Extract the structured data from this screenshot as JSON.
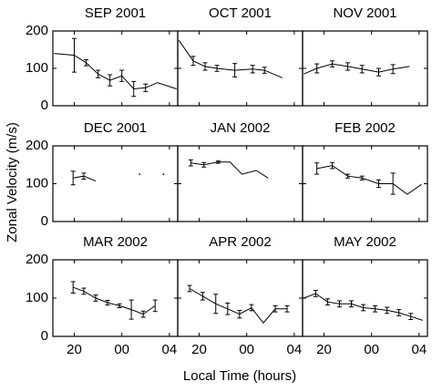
{
  "ylabel": "Zonal Velocity (m/s)",
  "xlabel": "Local Time (hours)",
  "chart_data": [
    {
      "type": "line",
      "title": "SEP 2001",
      "color": "#000000",
      "x": [
        18.3,
        20,
        21,
        22,
        23,
        24,
        25,
        26,
        27,
        28.6
      ],
      "values": [
        140,
        135,
        115,
        85,
        68,
        80,
        45,
        48,
        62,
        45
      ],
      "errors": [
        null,
        45,
        8,
        10,
        15,
        15,
        20,
        10,
        null,
        null
      ],
      "xlim": [
        18.2,
        28.7
      ],
      "ylim": [
        0,
        200
      ],
      "xticks": [
        20,
        {
          "value": 24,
          "label": "00"
        },
        {
          "value": 28,
          "label": "04"
        }
      ],
      "yticks": [
        0,
        100,
        200
      ]
    },
    {
      "type": "line",
      "title": "OCT 2001",
      "color": "#000000",
      "x": [
        18.3,
        19.5,
        20.5,
        21.5,
        23,
        24.5,
        25.5,
        27
      ],
      "values": [
        175,
        120,
        105,
        100,
        95,
        98,
        95,
        75
      ],
      "errors": [
        null,
        12,
        10,
        8,
        18,
        10,
        8,
        null
      ],
      "xlim": [
        18.2,
        28.7
      ],
      "ylim": [
        0,
        200
      ],
      "xticks": [
        20,
        {
          "value": 24,
          "label": "00"
        },
        {
          "value": 28,
          "label": "04"
        }
      ],
      "yticks": [
        0,
        100,
        200
      ]
    },
    {
      "type": "line",
      "title": "NOV 2001",
      "color": "#000000",
      "x": [
        18.3,
        19.4,
        20.7,
        22,
        23.2,
        24.6,
        25.8,
        27.2
      ],
      "values": [
        85,
        100,
        112,
        105,
        98,
        90,
        98,
        105
      ],
      "errors": [
        null,
        12,
        8,
        10,
        10,
        10,
        12,
        null
      ],
      "xlim": [
        18.2,
        28.7
      ],
      "ylim": [
        0,
        200
      ],
      "xticks": [
        20,
        {
          "value": 24,
          "label": "00"
        },
        {
          "value": 28,
          "label": "04"
        }
      ],
      "yticks": [
        0,
        100,
        200
      ]
    },
    {
      "type": "line",
      "title": "DEC 2001",
      "color": "#000000",
      "x": [
        19.9,
        20.8,
        21.8,
        23,
        25.5,
        26.5,
        27.5
      ],
      "values": [
        115,
        120,
        107,
        null,
        125,
        null,
        125
      ],
      "errors": [
        18,
        8,
        null,
        null,
        null,
        null,
        null
      ],
      "xlim": [
        18.2,
        28.7
      ],
      "ylim": [
        0,
        200
      ],
      "xticks": [
        20,
        {
          "value": 24,
          "label": "00"
        },
        {
          "value": 28,
          "label": "04"
        }
      ],
      "yticks": [
        0,
        100,
        200
      ]
    },
    {
      "type": "line",
      "title": "JAN 2002",
      "color": "#000000",
      "x": [
        19.3,
        20.4,
        21.6,
        22.6,
        23.6,
        24.8,
        25.8
      ],
      "values": [
        155,
        150,
        157,
        157,
        125,
        135,
        115
      ],
      "errors": [
        8,
        6,
        3,
        null,
        null,
        null,
        null
      ],
      "xlim": [
        18.2,
        28.7
      ],
      "ylim": [
        0,
        200
      ],
      "xticks": [
        20,
        {
          "value": 24,
          "label": "00"
        },
        {
          "value": 28,
          "label": "04"
        }
      ],
      "yticks": [
        0,
        100,
        200
      ]
    },
    {
      "type": "line",
      "title": "FEB 2002",
      "color": "#000000",
      "x": [
        19.4,
        20.7,
        22,
        23.2,
        24.6,
        25.8,
        27,
        28.2
      ],
      "values": [
        140,
        148,
        120,
        115,
        100,
        100,
        72,
        98
      ],
      "errors": [
        15,
        8,
        5,
        5,
        10,
        28,
        null,
        null
      ],
      "xlim": [
        18.2,
        28.7
      ],
      "ylim": [
        0,
        200
      ],
      "xticks": [
        20,
        {
          "value": 24,
          "label": "00"
        },
        {
          "value": 28,
          "label": "04"
        }
      ],
      "yticks": [
        0,
        100,
        200
      ]
    },
    {
      "type": "line",
      "title": "MAR 2002",
      "color": "#000000",
      "x": [
        19.9,
        20.8,
        21.8,
        22.8,
        23.8,
        24.8,
        25.8,
        26.8
      ],
      "values": [
        128,
        118,
        100,
        88,
        80,
        70,
        58,
        80
      ],
      "errors": [
        15,
        8,
        8,
        6,
        5,
        25,
        8,
        15
      ],
      "xlim": [
        18.2,
        28.7
      ],
      "ylim": [
        0,
        200
      ],
      "xticks": [
        20,
        {
          "value": 24,
          "label": "00"
        },
        {
          "value": 28,
          "label": "04"
        }
      ],
      "yticks": [
        0,
        100,
        200
      ]
    },
    {
      "type": "line",
      "title": "APR 2002",
      "color": "#000000",
      "x": [
        19.2,
        20.3,
        21.4,
        22.4,
        23.4,
        24.4,
        25.4,
        26.4,
        27.4
      ],
      "values": [
        125,
        105,
        85,
        72,
        58,
        75,
        35,
        72,
        72
      ],
      "errors": [
        8,
        10,
        25,
        15,
        10,
        8,
        null,
        8,
        8
      ],
      "xlim": [
        18.2,
        28.7
      ],
      "ylim": [
        0,
        200
      ],
      "xticks": [
        20,
        {
          "value": 24,
          "label": "00"
        },
        {
          "value": 28,
          "label": "04"
        }
      ],
      "yticks": [
        0,
        100,
        200
      ]
    },
    {
      "type": "line",
      "title": "MAY 2002",
      "color": "#000000",
      "x": [
        18.3,
        19.3,
        20.3,
        21.3,
        22.3,
        23.3,
        24.3,
        25.3,
        26.3,
        27.3,
        28.3
      ],
      "values": [
        100,
        112,
        90,
        85,
        85,
        75,
        72,
        68,
        62,
        52,
        42
      ],
      "errors": [
        null,
        8,
        8,
        8,
        8,
        8,
        8,
        8,
        8,
        8,
        null
      ],
      "xlim": [
        18.2,
        28.7
      ],
      "ylim": [
        0,
        200
      ],
      "xticks": [
        20,
        {
          "value": 24,
          "label": "00"
        },
        {
          "value": 28,
          "label": "04"
        }
      ],
      "yticks": [
        0,
        100,
        200
      ]
    }
  ]
}
